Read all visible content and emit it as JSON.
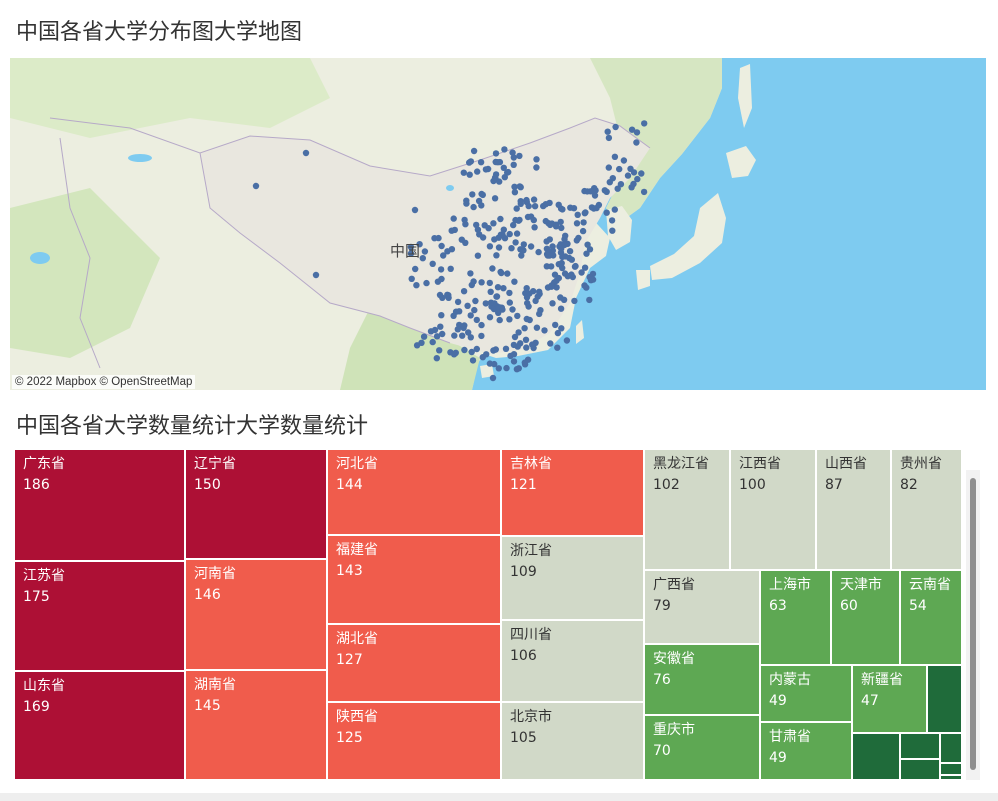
{
  "map_section": {
    "title": "中国各省大学分布图大学地图",
    "country_label": "中国",
    "attribution": "© 2022 Mapbox © OpenStreetMap",
    "marker_color": "#4a6fa5",
    "colors": {
      "water": "#7ecbf0",
      "land": "#eceee0",
      "china": "#e9e7df",
      "green": "#cfe3b8"
    }
  },
  "treemap_section": {
    "title": "中国各省大学数量统计大学数量统计",
    "tiles": [
      {
        "name": "广东省",
        "value": "186",
        "color": "#ad1035"
      },
      {
        "name": "江苏省",
        "value": "175",
        "color": "#ad1035"
      },
      {
        "name": "山东省",
        "value": "169",
        "color": "#ad1035"
      },
      {
        "name": "辽宁省",
        "value": "150",
        "color": "#ad1035"
      },
      {
        "name": "河南省",
        "value": "146",
        "color": "#f05c4c"
      },
      {
        "name": "湖南省",
        "value": "145",
        "color": "#f05c4c"
      },
      {
        "name": "河北省",
        "value": "144",
        "color": "#f05c4c"
      },
      {
        "name": "福建省",
        "value": "143",
        "color": "#f05c4c"
      },
      {
        "name": "湖北省",
        "value": "127",
        "color": "#f05c4c"
      },
      {
        "name": "陕西省",
        "value": "125",
        "color": "#f05c4c"
      },
      {
        "name": "吉林省",
        "value": "121",
        "color": "#f05c4c"
      },
      {
        "name": "浙江省",
        "value": "109",
        "color": "#d1d9c8"
      },
      {
        "name": "四川省",
        "value": "106",
        "color": "#d1d9c8"
      },
      {
        "name": "北京市",
        "value": "105",
        "color": "#d1d9c8"
      },
      {
        "name": "黑龙江省",
        "value": "102",
        "color": "#d1d9c8"
      },
      {
        "name": "江西省",
        "value": "100",
        "color": "#d1d9c8"
      },
      {
        "name": "山西省",
        "value": "87",
        "color": "#d1d9c8"
      },
      {
        "name": "贵州省",
        "value": "82",
        "color": "#d1d9c8"
      },
      {
        "name": "广西省",
        "value": "79",
        "color": "#d1d9c8"
      },
      {
        "name": "安徽省",
        "value": "76",
        "color": "#5ea853"
      },
      {
        "name": "重庆市",
        "value": "70",
        "color": "#5ea853"
      },
      {
        "name": "上海市",
        "value": "63",
        "color": "#5ea853"
      },
      {
        "name": "天津市",
        "value": "60",
        "color": "#5ea853"
      },
      {
        "name": "云南省",
        "value": "54",
        "color": "#5ea853"
      },
      {
        "name": "内蒙古",
        "value": "49",
        "color": "#5ea853"
      },
      {
        "name": "甘肃省",
        "value": "49",
        "color": "#5ea853"
      },
      {
        "name": "新疆省",
        "value": "47",
        "color": "#5ea853"
      },
      {
        "name": "",
        "value": "",
        "color": "#1f6b3a"
      },
      {
        "name": "",
        "value": "",
        "color": "#1f6b3a"
      },
      {
        "name": "",
        "value": "",
        "color": "#1f6b3a"
      },
      {
        "name": "",
        "value": "",
        "color": "#1f6b3a"
      },
      {
        "name": "",
        "value": "",
        "color": "#1f6b3a"
      },
      {
        "name": "",
        "value": "",
        "color": "#1f6b3a"
      },
      {
        "name": "",
        "value": "",
        "color": "#1f6b3a"
      }
    ]
  }
}
